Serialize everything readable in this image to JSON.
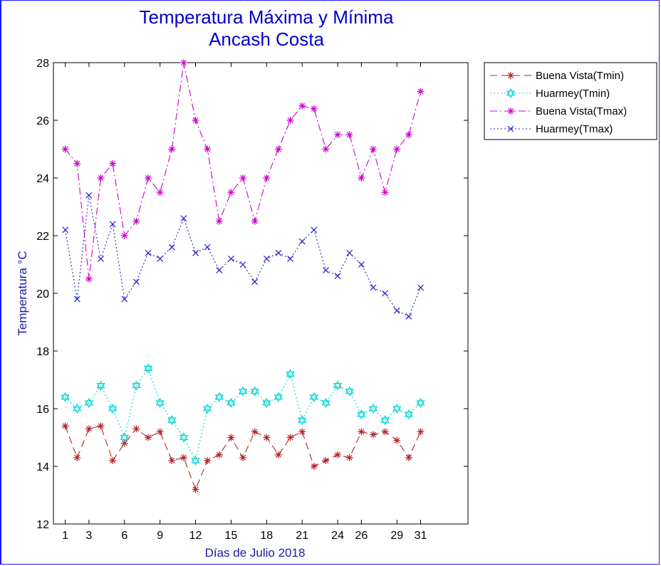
{
  "chart_data": {
    "type": "line",
    "title": "Temperatura Máxima y Mínima",
    "subtitle": "Ancash Costa",
    "xlabel": "Días de Julio 2018",
    "ylabel": "Temperatura °C",
    "xlim": [
      0,
      35
    ],
    "ylim": [
      12,
      28
    ],
    "x_ticks": [
      1,
      3,
      6,
      9,
      12,
      15,
      18,
      21,
      24,
      26,
      29,
      31
    ],
    "y_ticks": [
      12,
      14,
      16,
      18,
      20,
      22,
      24,
      26,
      28
    ],
    "legend_position": "outside-top-right",
    "grid": false,
    "x": [
      1,
      2,
      3,
      4,
      5,
      6,
      7,
      8,
      9,
      10,
      11,
      12,
      13,
      14,
      15,
      16,
      17,
      18,
      19,
      20,
      21,
      22,
      23,
      24,
      25,
      26,
      27,
      28,
      29,
      30,
      31
    ],
    "series": [
      {
        "name": "Buena Vista(Tmin)",
        "color": "#b22222",
        "line": "dashed",
        "marker": "asterisk",
        "values": [
          15.4,
          14.3,
          15.3,
          15.4,
          14.2,
          14.8,
          15.3,
          15.0,
          15.2,
          14.2,
          14.3,
          13.2,
          14.2,
          14.4,
          15.0,
          14.3,
          15.2,
          15.0,
          14.4,
          15.0,
          15.2,
          14.0,
          14.2,
          14.4,
          14.3,
          15.2,
          15.1,
          15.2,
          14.9,
          14.3,
          15.2
        ]
      },
      {
        "name": "Huarmey(Tmin)",
        "color": "#00d5d5",
        "line": "dotted",
        "marker": "hexagram",
        "values": [
          16.4,
          16.0,
          16.2,
          16.8,
          16.0,
          15.0,
          16.8,
          17.4,
          16.2,
          15.6,
          15.0,
          14.2,
          16.0,
          16.4,
          16.2,
          16.6,
          16.6,
          16.2,
          16.4,
          17.2,
          15.6,
          16.4,
          16.2,
          16.8,
          16.6,
          15.8,
          16.0,
          15.6,
          16.0,
          15.8,
          16.2
        ]
      },
      {
        "name": "Buena Vista(Tmax)",
        "color": "#cc00cc",
        "line": "dashdot",
        "marker": "asterisk",
        "values": [
          25.0,
          24.5,
          20.5,
          24.0,
          24.5,
          22.0,
          22.5,
          24.0,
          23.5,
          25.0,
          28.0,
          26.0,
          25.0,
          22.5,
          23.5,
          24.0,
          22.5,
          24.0,
          25.0,
          26.0,
          26.5,
          26.4,
          25.0,
          25.5,
          25.5,
          24.0,
          25.0,
          23.5,
          25.0,
          25.5,
          27.0
        ]
      },
      {
        "name": "Huarmey(Tmax)",
        "color": "#2222cc",
        "line": "dotted",
        "marker": "x",
        "values": [
          22.2,
          19.8,
          23.4,
          21.2,
          22.4,
          19.8,
          20.4,
          21.4,
          21.2,
          21.6,
          22.6,
          21.4,
          21.6,
          20.8,
          21.2,
          21.0,
          20.4,
          21.2,
          21.4,
          21.2,
          21.8,
          22.2,
          20.8,
          20.6,
          21.4,
          21.0,
          20.2,
          20.0,
          19.4,
          19.2,
          20.2
        ]
      }
    ]
  }
}
